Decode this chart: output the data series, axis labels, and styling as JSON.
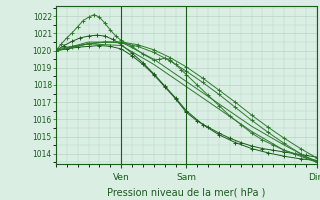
{
  "title": "Pression niveau de la mer( hPa )",
  "ylabel_ticks": [
    1014,
    1015,
    1016,
    1017,
    1018,
    1019,
    1020,
    1021,
    1022
  ],
  "ylim": [
    1013.4,
    1022.6
  ],
  "xlim": [
    0,
    96
  ],
  "xtick_positions": [
    24,
    48,
    96
  ],
  "xtick_labels": [
    "Ven",
    "Sam",
    "Dim"
  ],
  "background_color": "#daeee4",
  "grid_color": "#b8d4c4",
  "line_color_dark": "#1a5c1a",
  "line_color_mid": "#2d7a2d",
  "line_color_light": "#4a964a",
  "series": [
    {
      "x": [
        0,
        4,
        8,
        12,
        16,
        20,
        24,
        28,
        32,
        36,
        40,
        44,
        48,
        52,
        56,
        60,
        64,
        68,
        72,
        76,
        80,
        84,
        88,
        92,
        96
      ],
      "y": [
        1020.0,
        1020.1,
        1020.2,
        1020.25,
        1020.3,
        1020.25,
        1020.1,
        1019.7,
        1019.2,
        1018.6,
        1017.9,
        1017.2,
        1016.4,
        1015.9,
        1015.55,
        1015.2,
        1014.9,
        1014.65,
        1014.45,
        1014.3,
        1014.2,
        1014.1,
        1014.0,
        1013.9,
        1013.8
      ],
      "marker": "+",
      "lw": 0.7,
      "ms": 2.5,
      "style": "dark"
    },
    {
      "x": [
        0,
        3,
        6,
        9,
        12,
        15,
        18,
        21,
        24,
        28,
        32,
        36,
        40,
        44,
        48,
        54,
        60,
        66,
        72,
        78,
        84,
        90,
        96
      ],
      "y": [
        1020.0,
        1020.3,
        1020.55,
        1020.75,
        1020.85,
        1020.9,
        1020.85,
        1020.65,
        1020.35,
        1019.85,
        1019.3,
        1018.65,
        1017.95,
        1017.25,
        1016.5,
        1015.7,
        1015.1,
        1014.65,
        1014.3,
        1014.05,
        1013.85,
        1013.7,
        1013.6
      ],
      "marker": "+",
      "lw": 0.7,
      "ms": 2.5,
      "style": "dark"
    },
    {
      "x": [
        0,
        2,
        4,
        6,
        8,
        10,
        12,
        14,
        16,
        18,
        20,
        22,
        24,
        28,
        32,
        36,
        38,
        40,
        42,
        44,
        46,
        48,
        52,
        56,
        60,
        64,
        68,
        72,
        76,
        80,
        84,
        88,
        92,
        96
      ],
      "y": [
        1020.0,
        1020.4,
        1020.75,
        1021.05,
        1021.4,
        1021.75,
        1021.95,
        1022.1,
        1021.95,
        1021.6,
        1021.2,
        1020.85,
        1020.6,
        1020.25,
        1019.8,
        1019.45,
        1019.5,
        1019.55,
        1019.45,
        1019.2,
        1018.9,
        1018.6,
        1018.0,
        1017.4,
        1016.8,
        1016.2,
        1015.7,
        1015.2,
        1014.8,
        1014.5,
        1014.2,
        1014.0,
        1013.8,
        1013.6
      ],
      "marker": "+",
      "lw": 0.7,
      "ms": 2.5,
      "style": "mid"
    },
    {
      "x": [
        0,
        12,
        24,
        36,
        48,
        60,
        72,
        84,
        96
      ],
      "y": [
        1020.0,
        1020.5,
        1020.5,
        1019.5,
        1018.2,
        1016.9,
        1015.6,
        1014.5,
        1013.5
      ],
      "marker": null,
      "lw": 0.7,
      "ms": 0,
      "style": "mid"
    },
    {
      "x": [
        0,
        12,
        24,
        36,
        48,
        60,
        72,
        84,
        96
      ],
      "y": [
        1020.0,
        1020.4,
        1020.3,
        1019.2,
        1017.9,
        1016.6,
        1015.3,
        1014.2,
        1013.5
      ],
      "marker": null,
      "lw": 0.7,
      "ms": 0,
      "style": "mid"
    },
    {
      "x": [
        0,
        6,
        12,
        18,
        24,
        30,
        36,
        42,
        48,
        54,
        60,
        66,
        72,
        78,
        84,
        90,
        96
      ],
      "y": [
        1020.0,
        1020.2,
        1020.4,
        1020.5,
        1020.5,
        1020.35,
        1020.05,
        1019.6,
        1019.05,
        1018.4,
        1017.7,
        1017.0,
        1016.25,
        1015.55,
        1014.9,
        1014.3,
        1013.75
      ],
      "marker": "+",
      "lw": 0.7,
      "ms": 2.5,
      "style": "mid"
    },
    {
      "x": [
        0,
        6,
        12,
        18,
        24,
        30,
        36,
        42,
        48,
        54,
        60,
        66,
        72,
        78,
        84,
        90,
        96
      ],
      "y": [
        1020.1,
        1020.25,
        1020.4,
        1020.5,
        1020.45,
        1020.25,
        1019.9,
        1019.4,
        1018.8,
        1018.15,
        1017.45,
        1016.7,
        1015.95,
        1015.25,
        1014.6,
        1014.0,
        1013.5
      ],
      "marker": "+",
      "lw": 0.7,
      "ms": 2.5,
      "style": "mid"
    }
  ]
}
